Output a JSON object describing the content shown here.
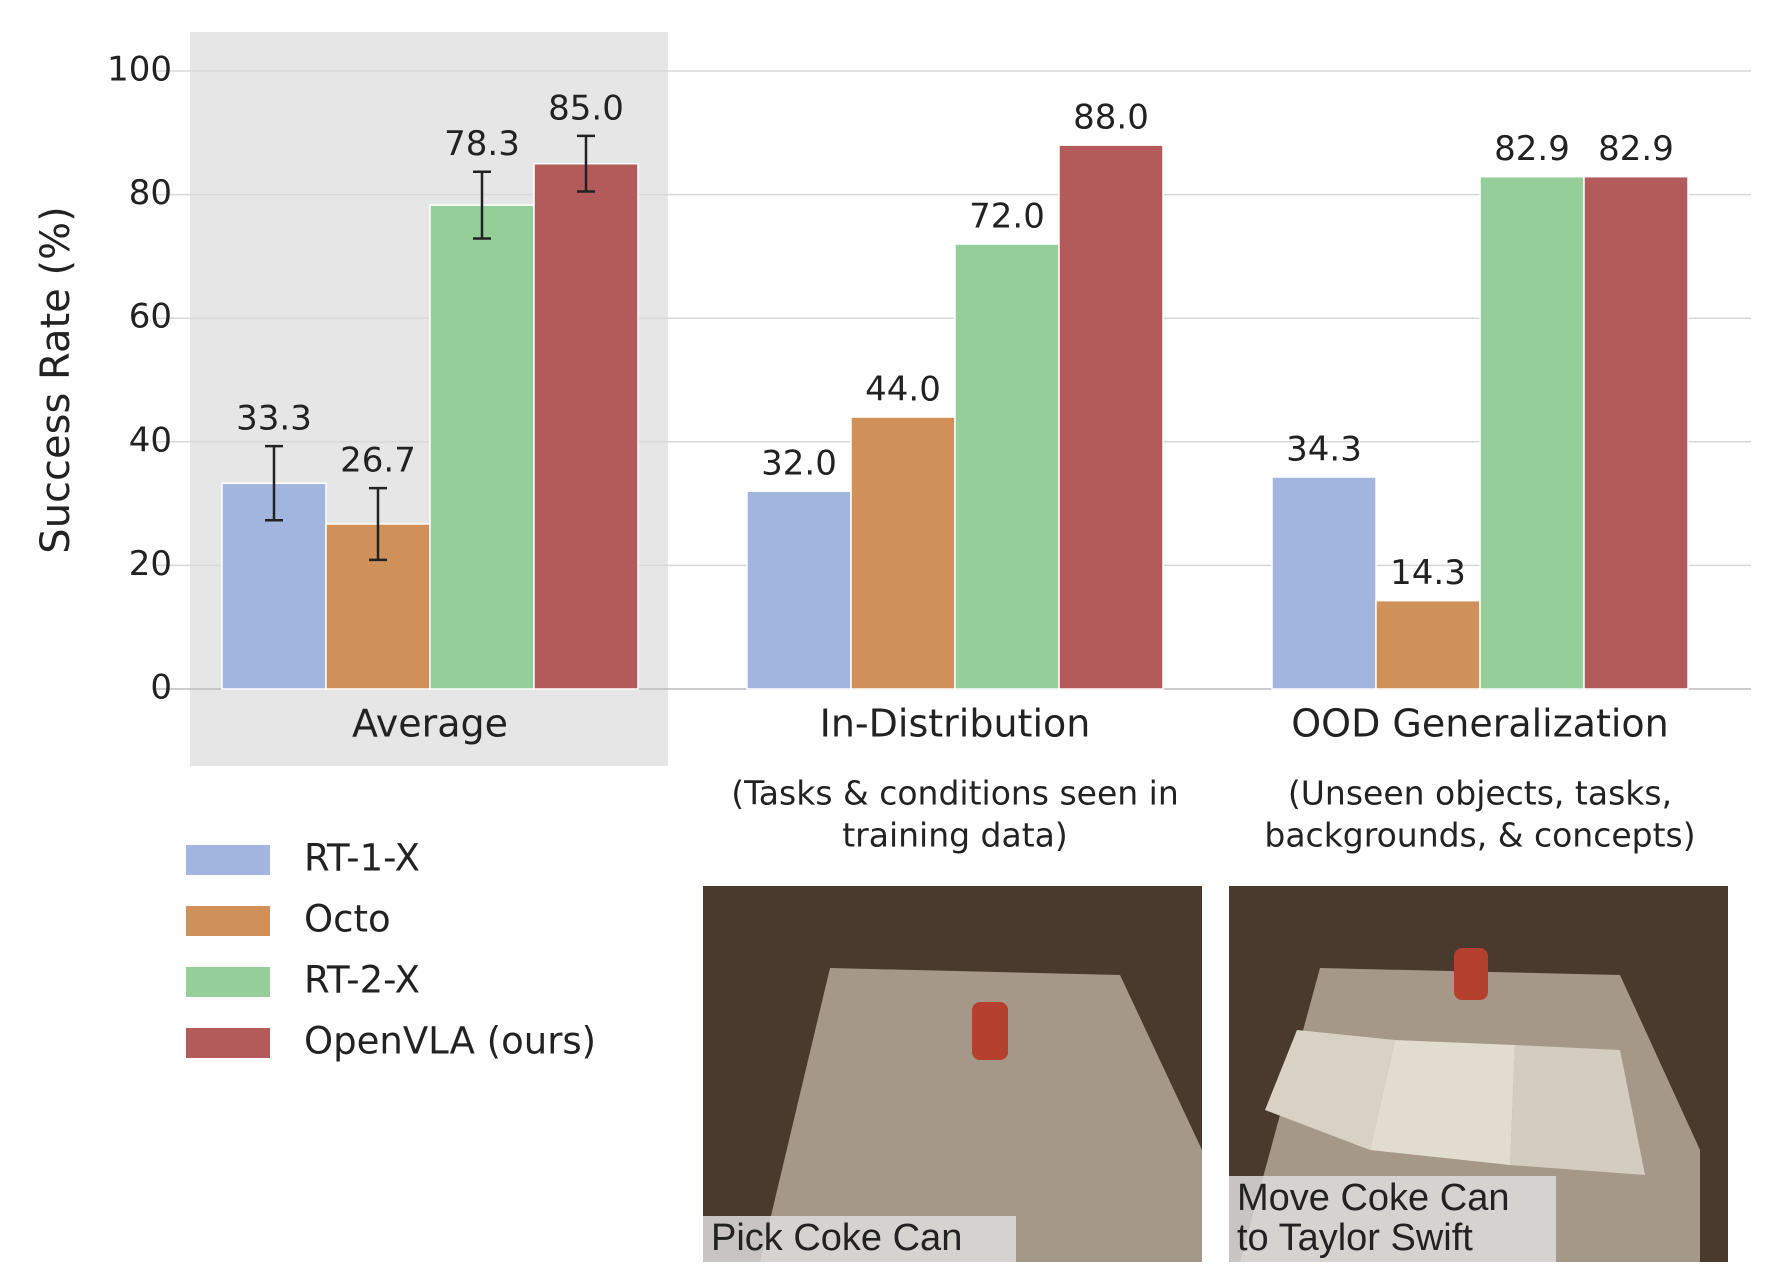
{
  "chart_data": {
    "type": "bar",
    "ylabel": "Success Rate (%)",
    "categories": [
      "Average",
      "In-Distribution",
      "OOD Generalization"
    ],
    "category_notes": [
      null,
      [
        "(Tasks & conditions seen in",
        "training data)"
      ],
      [
        "(Unseen objects, tasks,",
        "backgrounds, & concepts)"
      ]
    ],
    "series": [
      {
        "name": "RT-1-X",
        "color": "#a1b5de",
        "values": [
          33.3,
          32.0,
          34.3
        ],
        "value_labels": [
          "33.3",
          "32.0",
          "34.3"
        ],
        "errors": [
          6.0,
          null,
          null
        ]
      },
      {
        "name": "Octo",
        "color": "#cf9159",
        "values": [
          26.7,
          44.0,
          14.3
        ],
        "value_labels": [
          "26.7",
          "44.0",
          "14.3"
        ],
        "errors": [
          5.8,
          null,
          null
        ]
      },
      {
        "name": "RT-2-X",
        "color": "#96ce9a",
        "values": [
          78.3,
          72.0,
          82.9
        ],
        "value_labels": [
          "78.3",
          "72.0",
          "82.9"
        ],
        "errors": [
          5.4,
          null,
          null
        ]
      },
      {
        "name": "OpenVLA (ours)",
        "color": "#b35a5a",
        "values": [
          85.0,
          88.0,
          82.9
        ],
        "value_labels": [
          "85.0",
          "88.0",
          "82.9"
        ],
        "errors": [
          4.5,
          null,
          null
        ]
      }
    ],
    "ylim": [
      0,
      100
    ],
    "yticks": [
      0,
      20,
      40,
      60,
      80,
      100
    ],
    "grid": true,
    "legend": "bottom-left"
  },
  "images": [
    {
      "caption_lines": [
        "Pick Coke Can"
      ]
    },
    {
      "caption_lines": [
        "Move Coke Can",
        "to Taylor Swift"
      ]
    }
  ]
}
